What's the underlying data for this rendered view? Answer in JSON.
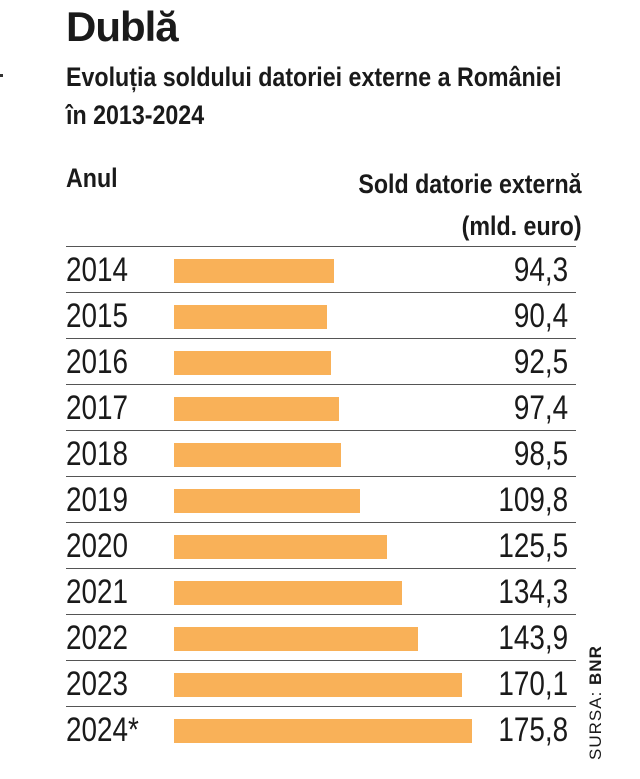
{
  "chart_data": {
    "type": "bar",
    "title": "Dublă",
    "subtitle": "Evoluția soldului datoriei externe a României în 2013-2024",
    "xlabel": "Anul",
    "ylabel": "Sold datorie externă (mld. euro)",
    "ylabel_line1": "Sold datorie externă",
    "ylabel_line2": "(mld. euro)",
    "orientation": "horizontal",
    "color": "#f9b158",
    "categories": [
      "2014",
      "2015",
      "2016",
      "2017",
      "2018",
      "2019",
      "2020",
      "2021",
      "2022",
      "2023",
      "2024*"
    ],
    "values": [
      94.3,
      90.4,
      92.5,
      97.4,
      98.5,
      109.8,
      125.5,
      134.3,
      143.9,
      170.1,
      175.8
    ],
    "value_labels": [
      "94,3",
      "90,4",
      "92,5",
      "97,4",
      "98,5",
      "109,8",
      "125,5",
      "134,3",
      "143,9",
      "170,1",
      "175,8"
    ],
    "source_prefix": "SURSA: ",
    "source": "BNR"
  }
}
